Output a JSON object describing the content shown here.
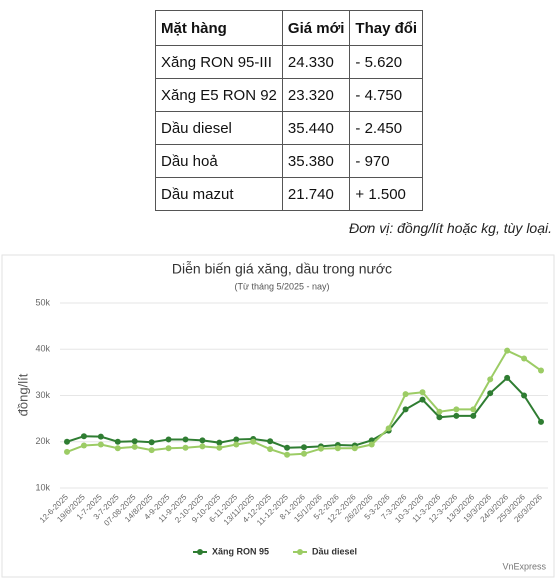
{
  "table": {
    "header": [
      "Mặt hàng",
      "Giá mới",
      "Thay đổi"
    ],
    "rows": [
      [
        "Xăng RON 95-III",
        "24.330",
        "- 5.620"
      ],
      [
        "Xăng E5 RON 92",
        "23.320",
        "- 4.750"
      ],
      [
        "Dầu diesel",
        "35.440",
        "- 2.450"
      ],
      [
        "Dầu hoả",
        "35.380",
        "- 970"
      ],
      [
        "Dầu mazut",
        "21.740",
        "+ 1.500"
      ]
    ]
  },
  "note": "Đơn vị: đồng/lít hoặc kg, tùy loại.",
  "chart_data": {
    "type": "line",
    "title": "Diễn biến giá xăng, dầu trong nước",
    "subtitle": "(Từ tháng 5/2025 - nay)",
    "y_label": "đồng/lít",
    "source": "VnExpress",
    "categories": [
      "12-6-2025",
      "19/6/2025",
      "1-7-2025",
      "3-7-2025",
      "07-08-2025",
      "14/8/2025",
      "4-9-2025",
      "11-9-2025",
      "2-10-2025",
      "9-10-2025",
      "6-11-2025",
      "13/11/2025",
      "4-12-2025",
      "11-12-2025",
      "8-1-2026",
      "15/1/2026",
      "5-2-2026",
      "12-2-2026",
      "26/2/2026",
      "5-3-2026",
      "7-3-2026",
      "10-3-2026",
      "11-3-2026",
      "12-3-2026",
      "13/3/2026",
      "19/3/2026",
      "24/3/2026",
      "25/3/2026",
      "26/3/2026"
    ],
    "series": [
      {
        "name": "Xăng RON 95",
        "color": "#2f7d32",
        "values": [
          20000,
          21200,
          21100,
          20000,
          20100,
          19900,
          20500,
          20500,
          20300,
          19800,
          20500,
          20600,
          20100,
          18700,
          18800,
          19000,
          19300,
          19200,
          20300,
          22400,
          27000,
          29100,
          25300,
          25600,
          25600,
          30500,
          33800,
          30000,
          24300
        ]
      },
      {
        "name": "Dầu diesel",
        "color": "#9ccc65",
        "values": [
          17800,
          19200,
          19400,
          18600,
          18900,
          18200,
          18600,
          18700,
          19000,
          18700,
          19400,
          20000,
          18400,
          17200,
          17400,
          18500,
          18600,
          18600,
          19400,
          22900,
          30300,
          30700,
          26500,
          27000,
          27000,
          33500,
          39700,
          38000,
          35400
        ]
      }
    ],
    "ylim": [
      10000,
      50000
    ],
    "yticks": [
      {
        "value": 10000,
        "label": "10k"
      },
      {
        "value": 20000,
        "label": "20k"
      },
      {
        "value": 30000,
        "label": "30k"
      },
      {
        "value": 40000,
        "label": "40k"
      },
      {
        "value": 50000,
        "label": "50k"
      }
    ],
    "grid": true,
    "legend": "bottom"
  }
}
